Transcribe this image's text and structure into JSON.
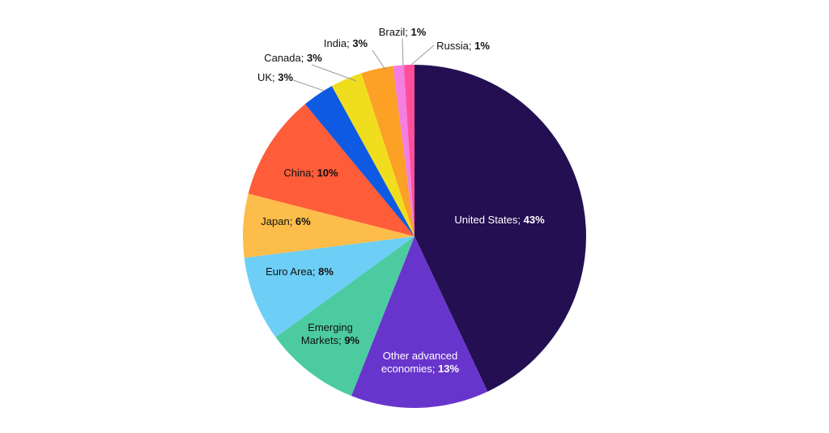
{
  "chart_data": {
    "type": "pie",
    "categories": [
      "United States",
      "Other advanced economies",
      "Emerging Markets",
      "Euro Area",
      "Japan",
      "China",
      "UK",
      "Canada",
      "India",
      "Brazil",
      "Russia"
    ],
    "values": [
      43,
      13,
      9,
      8,
      6,
      10,
      3,
      3,
      3,
      1,
      1
    ],
    "value_labels": [
      "43%",
      "13%",
      "9%",
      "8%",
      "6%",
      "10%",
      "3%",
      "3%",
      "3%",
      "1%",
      "1%"
    ],
    "separator": "; ",
    "colors": [
      "#230f52",
      "#6835cc",
      "#4ccba1",
      "#6dcff6",
      "#fdbd4a",
      "#ff5c39",
      "#0e5ae2",
      "#f0de1e",
      "#fca026",
      "#f47fe1",
      "#ff4f9b"
    ]
  }
}
